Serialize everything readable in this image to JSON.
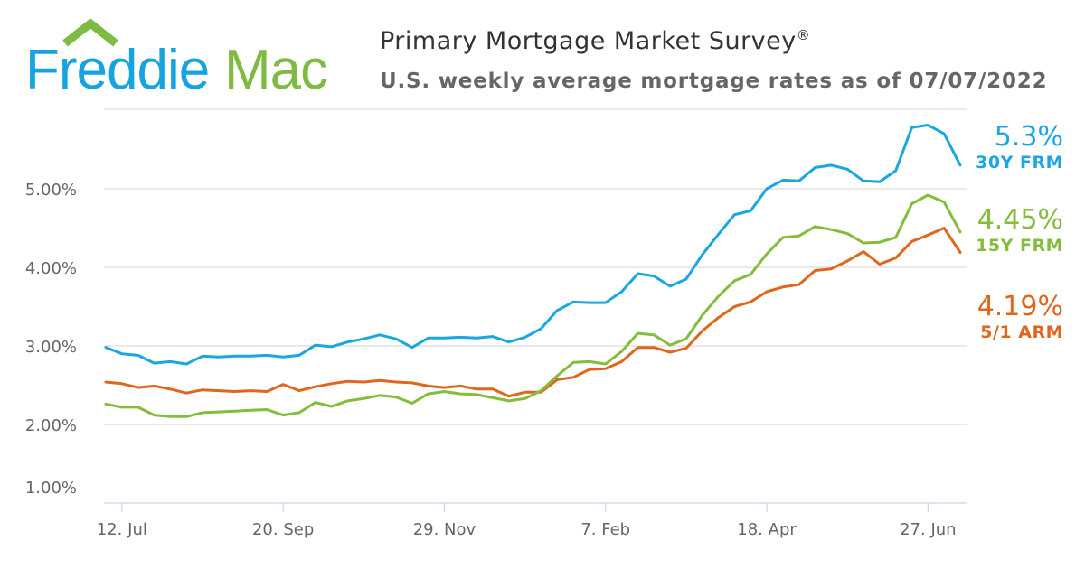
{
  "logo": {
    "text_left": "Freddie",
    "text_right": "Mac",
    "colors": {
      "blue": "#17a3dd",
      "green": "#7fba42"
    }
  },
  "header": {
    "title": "Primary Mortgage Market Survey",
    "registered_mark": "®",
    "subtitle": "U.S. weekly average mortgage rates as of 07/07/2022"
  },
  "chart_data": {
    "type": "line",
    "ylim": [
      1,
      6
    ],
    "grid": true,
    "y_ticks": [
      "1.00%",
      "2.00%",
      "3.00%",
      "4.00%",
      "5.00%"
    ],
    "x_ticks": [
      {
        "label": "12. Jul",
        "date": "2021-07-12"
      },
      {
        "label": "20. Sep",
        "date": "2021-09-20"
      },
      {
        "label": "29. Nov",
        "date": "2021-11-29"
      },
      {
        "label": "7. Feb",
        "date": "2022-02-07"
      },
      {
        "label": "18. Apr",
        "date": "2022-04-18"
      },
      {
        "label": "27. Jun",
        "date": "2022-06-27"
      }
    ],
    "x_start": "2021-07-01",
    "x_step": "weekly",
    "series": [
      {
        "name": "30Y FRM",
        "latest": "5.3%",
        "color": "#1ba6e0",
        "values": [
          2.98,
          2.9,
          2.88,
          2.78,
          2.8,
          2.77,
          2.87,
          2.86,
          2.87,
          2.87,
          2.88,
          2.86,
          2.88,
          3.01,
          2.99,
          3.05,
          3.09,
          3.14,
          3.09,
          2.98,
          3.1,
          3.1,
          3.11,
          3.1,
          3.12,
          3.05,
          3.11,
          3.22,
          3.45,
          3.56,
          3.55,
          3.55,
          3.69,
          3.92,
          3.89,
          3.76,
          3.85,
          4.16,
          4.42,
          4.67,
          4.72,
          5.0,
          5.11,
          5.1,
          5.27,
          5.3,
          5.25,
          5.1,
          5.09,
          5.23,
          5.78,
          5.81,
          5.7,
          5.3
        ]
      },
      {
        "name": "15Y FRM",
        "latest": "4.45%",
        "color": "#84bc3c",
        "values": [
          2.26,
          2.22,
          2.22,
          2.12,
          2.1,
          2.1,
          2.15,
          2.16,
          2.17,
          2.18,
          2.19,
          2.12,
          2.15,
          2.28,
          2.23,
          2.3,
          2.33,
          2.37,
          2.35,
          2.27,
          2.39,
          2.42,
          2.39,
          2.38,
          2.34,
          2.3,
          2.33,
          2.43,
          2.62,
          2.79,
          2.8,
          2.77,
          2.93,
          3.16,
          3.14,
          3.01,
          3.09,
          3.39,
          3.63,
          3.83,
          3.91,
          4.17,
          4.38,
          4.4,
          4.52,
          4.48,
          4.43,
          4.31,
          4.32,
          4.38,
          4.81,
          4.92,
          4.83,
          4.45
        ]
      },
      {
        "name": "5/1 ARM",
        "latest": "4.19%",
        "color": "#e0661d",
        "values": [
          2.54,
          2.52,
          2.47,
          2.49,
          2.45,
          2.4,
          2.44,
          2.43,
          2.42,
          2.43,
          2.42,
          2.51,
          2.43,
          2.48,
          2.52,
          2.55,
          2.54,
          2.56,
          2.54,
          2.53,
          2.49,
          2.47,
          2.49,
          2.45,
          2.45,
          2.36,
          2.41,
          2.41,
          2.57,
          2.6,
          2.7,
          2.71,
          2.8,
          2.98,
          2.98,
          2.92,
          2.97,
          3.19,
          3.36,
          3.5,
          3.56,
          3.69,
          3.75,
          3.78,
          3.96,
          3.98,
          4.08,
          4.2,
          4.04,
          4.12,
          4.33,
          4.41,
          4.5,
          4.19
        ]
      }
    ]
  }
}
